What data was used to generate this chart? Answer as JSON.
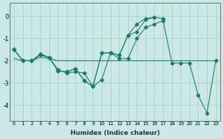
{
  "xlabel": "Humidex (Indice chaleur)",
  "background_color": "#cce8e4",
  "grid_color": "#99cccc",
  "line_color": "#1a7a6e",
  "xlim": [
    -0.5,
    23.5
  ],
  "ylim": [
    -4.7,
    0.6
  ],
  "yticks": [
    0,
    -1,
    -2,
    -3,
    -4
  ],
  "xticks": [
    0,
    1,
    2,
    3,
    4,
    5,
    6,
    7,
    8,
    9,
    10,
    11,
    12,
    13,
    14,
    15,
    16,
    17,
    18,
    19,
    20,
    21,
    22,
    23
  ],
  "line1_x": [
    0,
    1,
    2,
    3,
    4,
    5,
    6,
    7,
    8,
    9,
    10,
    11,
    12,
    13,
    14,
    15,
    16,
    17,
    18,
    19,
    20,
    21,
    22,
    23
  ],
  "line1_y": [
    -1.5,
    -2.0,
    -2.0,
    -1.7,
    -1.85,
    -2.45,
    -2.5,
    -2.35,
    -2.9,
    -3.15,
    -1.65,
    -1.65,
    -1.75,
    -0.85,
    -0.7,
    -0.15,
    -0.05,
    null,
    null,
    null,
    null,
    null,
    null,
    null
  ],
  "line2_x": [
    0,
    1,
    2,
    3,
    4,
    5,
    6,
    7,
    8,
    9,
    10,
    11,
    12,
    13,
    14,
    15,
    16,
    17,
    18,
    19,
    20,
    21,
    22,
    23
  ],
  "line2_y": [
    -1.5,
    -2.0,
    -2.0,
    -1.7,
    -1.85,
    -2.45,
    -2.5,
    -2.35,
    -2.9,
    -3.15,
    -1.65,
    -1.65,
    -1.75,
    -0.85,
    -0.35,
    -0.1,
    -0.05,
    -0.1,
    null,
    null,
    null,
    null,
    null,
    null
  ],
  "line3_x": [
    0,
    1,
    2,
    3,
    4,
    5,
    6,
    7,
    8,
    9,
    10,
    11,
    12,
    13,
    14,
    15,
    16,
    17,
    18,
    19,
    20,
    21,
    22,
    23
  ],
  "line3_y": [
    -1.5,
    -2.0,
    -2.0,
    -1.75,
    -1.85,
    -2.4,
    -2.55,
    -2.5,
    -2.55,
    -3.15,
    -2.85,
    -1.65,
    -1.9,
    -1.9,
    -1.0,
    -0.5,
    -0.35,
    -0.2,
    -2.1,
    -2.1,
    -2.1,
    -3.55,
    -4.35,
    -2.0
  ],
  "line_flat_x": [
    0,
    1,
    2,
    3,
    4,
    5,
    6,
    7,
    8,
    9,
    10,
    11,
    12,
    13,
    14,
    15,
    16,
    17,
    18,
    19,
    20,
    21,
    22,
    23
  ],
  "line_flat_y": [
    -1.9,
    -2.0,
    -2.0,
    -1.85,
    -1.9,
    -2.0,
    -2.0,
    -2.0,
    -2.0,
    -2.0,
    -2.0,
    -2.0,
    -2.0,
    -2.0,
    -2.0,
    -2.0,
    -2.0,
    -2.0,
    -2.0,
    -2.0,
    -2.0,
    -2.0,
    -2.0,
    -2.0
  ]
}
